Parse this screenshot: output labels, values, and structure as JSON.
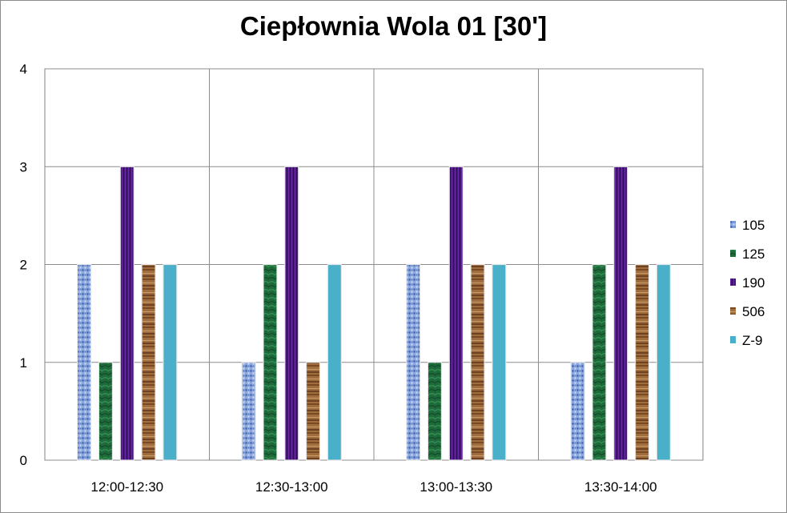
{
  "chart_data": {
    "type": "bar",
    "title": "Ciepłownia Wola 01 [30']",
    "xlabel": "",
    "ylabel": "",
    "categories": [
      "12:00-12:30",
      "12:30-13:00",
      "13:00-13:30",
      "13:30-14:00"
    ],
    "series": [
      {
        "name": "105",
        "values": [
          2,
          1,
          2,
          1
        ],
        "color": "#7b9ad6",
        "pattern": "blue-dots"
      },
      {
        "name": "125",
        "values": [
          1,
          2,
          1,
          2
        ],
        "color": "#1f6b3a",
        "pattern": "green-marble"
      },
      {
        "name": "190",
        "values": [
          3,
          3,
          3,
          3
        ],
        "color": "#4b1580",
        "pattern": "purple-stripes"
      },
      {
        "name": "506",
        "values": [
          2,
          1,
          2,
          2
        ],
        "color": "#9c6a3c",
        "pattern": "wood-grain"
      },
      {
        "name": "Z-9",
        "values": [
          2,
          2,
          2,
          2
        ],
        "color": "#4ab0c9",
        "pattern": "solid"
      }
    ],
    "yticks": [
      "0",
      "1",
      "2",
      "3",
      "4"
    ],
    "ylim": [
      0,
      4
    ],
    "grid": true,
    "legend_position": "right"
  }
}
